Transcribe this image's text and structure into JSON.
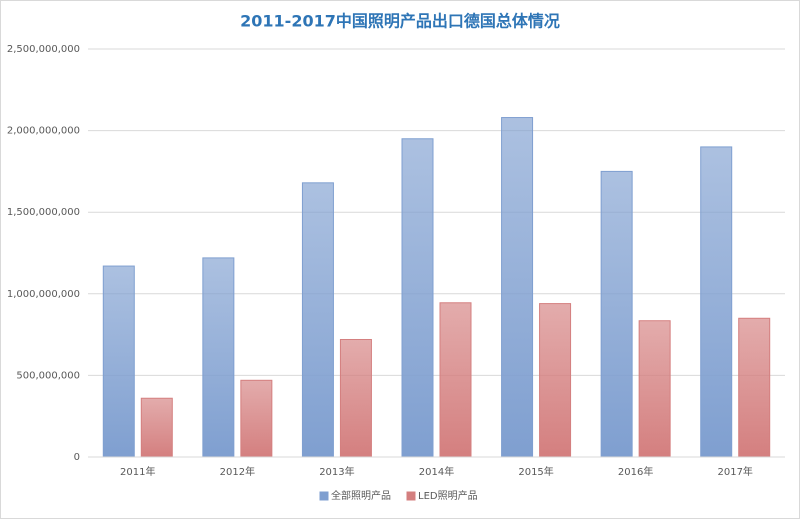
{
  "chart_data": {
    "type": "bar",
    "title": "2011-2017中国照明产品出口德国总体情况",
    "categories": [
      "2011年",
      "2012年",
      "2013年",
      "2014年",
      "2015年",
      "2016年",
      "2017年"
    ],
    "series": [
      {
        "name": "全部照明产品",
        "color": "#7f9fd0",
        "values": [
          1170000000,
          1220000000,
          1680000000,
          1950000000,
          2080000000,
          1750000000,
          1900000000
        ]
      },
      {
        "name": "LED照明产品",
        "color": "#d47f7f",
        "values": [
          360000000,
          470000000,
          720000000,
          945000000,
          940000000,
          835000000,
          850000000
        ]
      }
    ],
    "ylim": [
      0,
      2500000000
    ],
    "yticks": [
      0,
      {
        "value": 500000000,
        "label": "500,000,000"
      },
      {
        "value": 1000000000,
        "label": "1,000,000,000"
      },
      {
        "value": 1500000000,
        "label": "1,500,000,000"
      },
      {
        "value": 2000000000,
        "label": "2,000,000,000"
      },
      {
        "value": 2500000000,
        "label": "2,500,000,000"
      }
    ],
    "grid": true,
    "legend": "bottom"
  }
}
